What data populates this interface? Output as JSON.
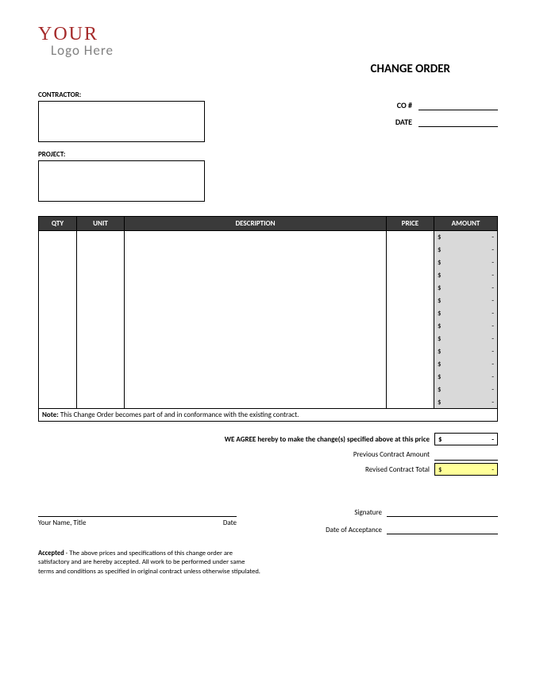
{
  "logo": {
    "line1": "YOUR",
    "line2": "Logo Here"
  },
  "title": "CHANGE ORDER",
  "labels": {
    "contractor": "CONTRACTOR:",
    "project": "PROJECT:",
    "co_num": "CO #",
    "date": "DATE"
  },
  "table": {
    "headers": {
      "qty": "QTY",
      "unit": "UNIT",
      "description": "DESCRIPTION",
      "price": "PRICE",
      "amount": "AMOUNT"
    },
    "row_count": 14,
    "amount_currency": "$",
    "amount_dash": "-",
    "amount_bg": "#d9d9d9",
    "header_bg": "#3a3a3a"
  },
  "note": {
    "label": "Note:",
    "text": "This Change Order becomes part of and in conformance with the existing contract."
  },
  "summary": {
    "agree": "WE AGREE hereby to make the change(s) specified above at this price",
    "previous": "Previous Contract Amount",
    "revised": "Revised Contract Total",
    "currency": "$",
    "dash": "-",
    "highlight_bg": "#ffff99"
  },
  "sig": {
    "name_title": "Your Name, Title",
    "date": "Date",
    "signature": "Signature",
    "date_acceptance": "Date of Acceptance"
  },
  "accepted": {
    "label": "Accepted",
    "text": " - The above prices and specifications of this change order are satisfactory and are hereby accepted. All work to be performed under same terms and conditions as specified in original contract unless otherwise stipulated."
  }
}
